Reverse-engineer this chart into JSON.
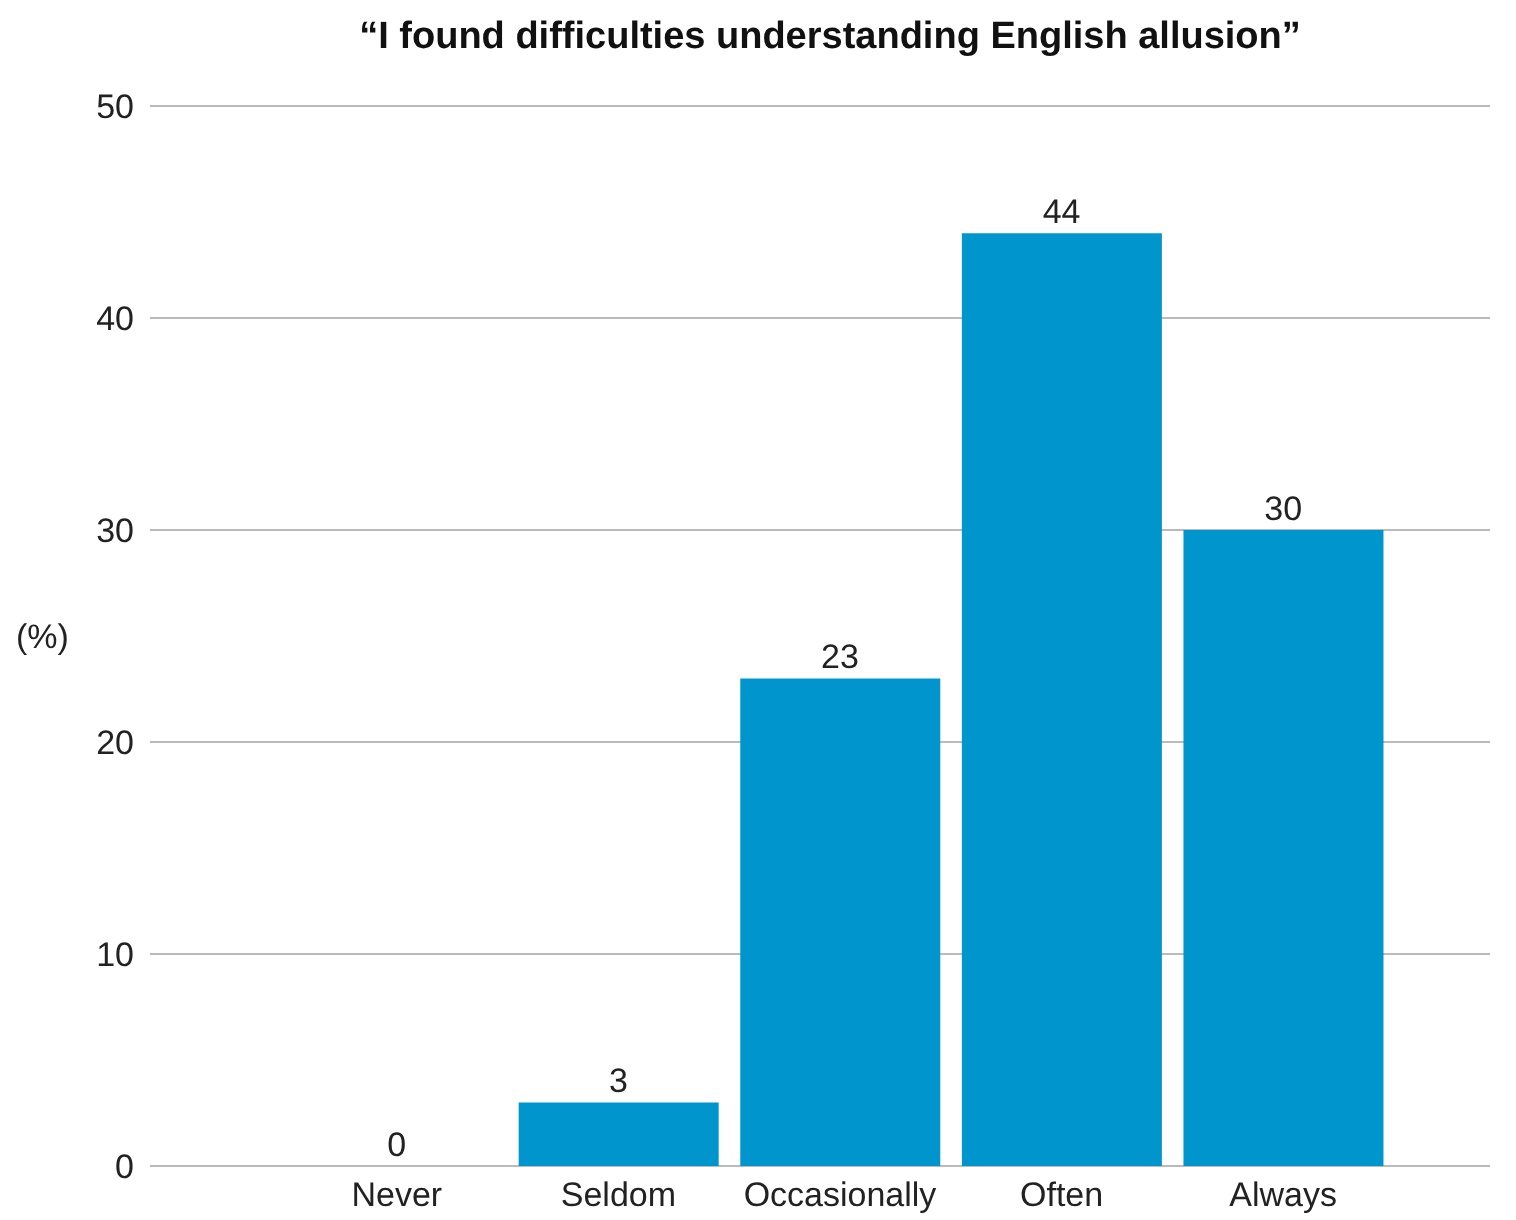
{
  "chart_data": {
    "type": "bar",
    "title": "“I found difficulties understanding English allusion”",
    "ylabel": "(%)",
    "categories": [
      "Never",
      "Seldom",
      "Occasionally",
      "Often",
      "Always"
    ],
    "values": [
      0,
      3,
      23,
      44,
      30
    ],
    "color": "#0095cc",
    "ylim": [
      0,
      50
    ],
    "yticks": [
      0,
      10,
      20,
      30,
      40,
      50
    ],
    "grid": "y",
    "data_labels": true
  }
}
